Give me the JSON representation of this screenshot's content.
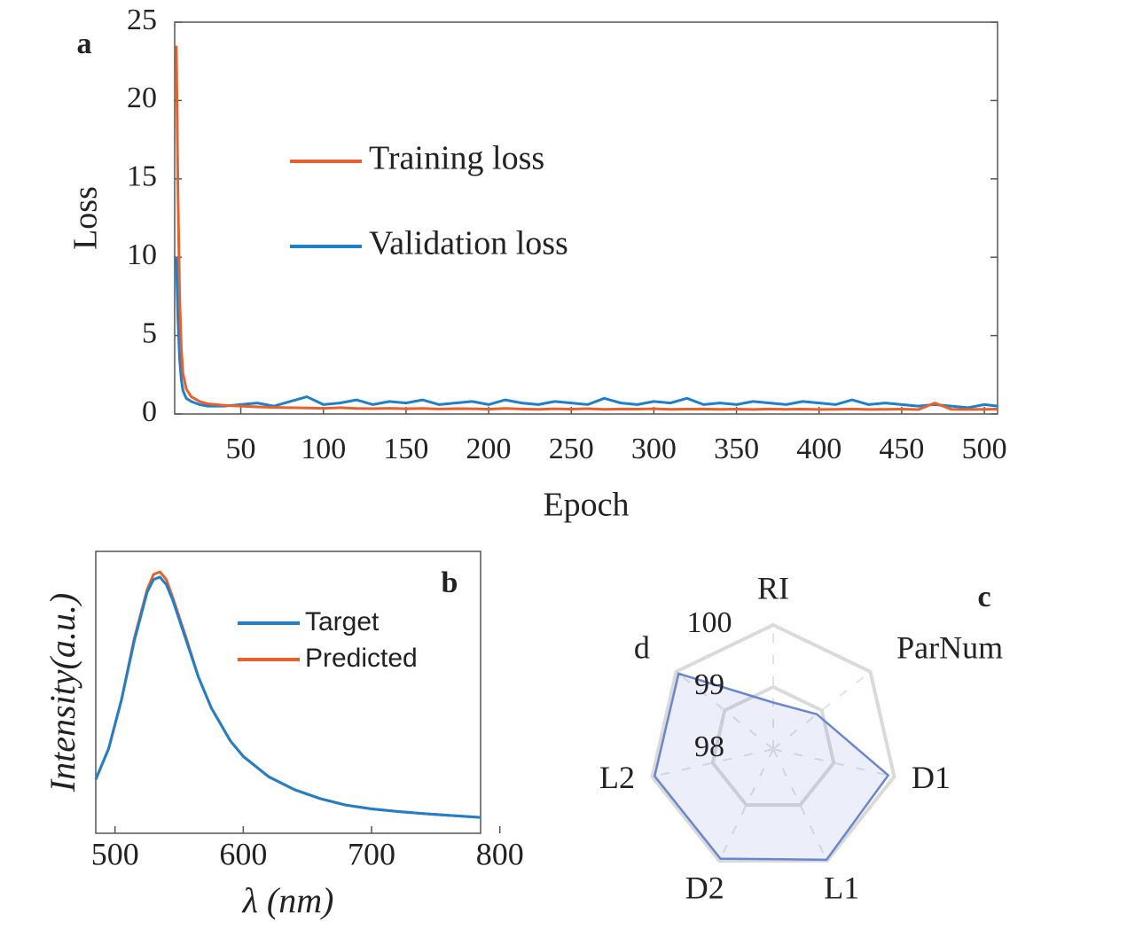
{
  "chart_data": [
    {
      "type": "line",
      "panel": "a",
      "xlabel": "Epoch",
      "ylabel": "Loss",
      "x": [
        11,
        12,
        13,
        14,
        15,
        17,
        20,
        25,
        30,
        40,
        50,
        60,
        70,
        80,
        90,
        100,
        110,
        120,
        130,
        140,
        150,
        160,
        170,
        180,
        190,
        200,
        210,
        220,
        230,
        240,
        250,
        260,
        270,
        280,
        290,
        300,
        310,
        320,
        330,
        340,
        350,
        360,
        370,
        380,
        390,
        400,
        410,
        420,
        430,
        440,
        450,
        460,
        470,
        480,
        490,
        500,
        508
      ],
      "series": [
        {
          "name": "Training loss",
          "color": "#e8602c",
          "values": [
            23.5,
            14,
            7.5,
            4.2,
            2.6,
            1.6,
            1.1,
            0.8,
            0.65,
            0.55,
            0.5,
            0.45,
            0.42,
            0.4,
            0.38,
            0.36,
            0.4,
            0.35,
            0.34,
            0.36,
            0.33,
            0.35,
            0.32,
            0.34,
            0.33,
            0.31,
            0.35,
            0.32,
            0.3,
            0.33,
            0.31,
            0.34,
            0.3,
            0.32,
            0.31,
            0.33,
            0.3,
            0.31,
            0.32,
            0.3,
            0.31,
            0.29,
            0.32,
            0.3,
            0.31,
            0.29,
            0.3,
            0.32,
            0.29,
            0.3,
            0.31,
            0.28,
            0.7,
            0.3,
            0.29,
            0.3,
            0.31
          ]
        },
        {
          "name": "Validation loss",
          "color": "#1f7fc8",
          "values": [
            10,
            6,
            3.5,
            2.2,
            1.5,
            1.0,
            0.8,
            0.6,
            0.5,
            0.5,
            0.6,
            0.7,
            0.5,
            0.8,
            1.1,
            0.6,
            0.7,
            0.9,
            0.6,
            0.8,
            0.7,
            0.9,
            0.6,
            0.7,
            0.8,
            0.6,
            0.9,
            0.7,
            0.6,
            0.8,
            0.7,
            0.6,
            1.0,
            0.7,
            0.6,
            0.8,
            0.7,
            1.0,
            0.6,
            0.7,
            0.6,
            0.8,
            0.7,
            0.6,
            0.8,
            0.7,
            0.6,
            0.9,
            0.6,
            0.7,
            0.6,
            0.5,
            0.6,
            0.5,
            0.4,
            0.6,
            0.5
          ]
        }
      ],
      "xlim": [
        10,
        508
      ],
      "ylim": [
        0,
        25
      ],
      "xticks": [
        50,
        100,
        150,
        200,
        250,
        300,
        350,
        400,
        450,
        500
      ],
      "yticks": [
        0,
        5,
        10,
        15,
        20,
        25
      ]
    },
    {
      "type": "line",
      "panel": "b",
      "xlabel": "λ (nm)",
      "ylabel": "Intensity(a.u.)",
      "x": [
        485,
        495,
        505,
        515,
        525,
        530,
        535,
        540,
        545,
        555,
        565,
        575,
        590,
        600,
        620,
        640,
        660,
        680,
        700,
        720,
        740,
        760,
        785
      ],
      "series": [
        {
          "name": "Target",
          "color": "#1f7fc8",
          "values": [
            0.21,
            0.33,
            0.52,
            0.75,
            0.94,
            0.99,
            1.0,
            0.97,
            0.91,
            0.76,
            0.61,
            0.49,
            0.36,
            0.3,
            0.22,
            0.17,
            0.135,
            0.11,
            0.095,
            0.085,
            0.077,
            0.07,
            0.062
          ]
        },
        {
          "name": "Predicted",
          "color": "#e8602c",
          "values": [
            0.21,
            0.33,
            0.52,
            0.76,
            0.95,
            1.01,
            1.02,
            0.99,
            0.92,
            0.77,
            0.61,
            0.49,
            0.36,
            0.3,
            0.22,
            0.17,
            0.135,
            0.11,
            0.095,
            0.085,
            0.077,
            0.07,
            0.062
          ]
        }
      ],
      "xlim": [
        485,
        785
      ],
      "ylim": [
        0,
        1.1
      ],
      "xticks": [
        500,
        600,
        700,
        800
      ]
    },
    {
      "type": "radar",
      "panel": "c",
      "categories": [
        "RI",
        "ParNum",
        "D1",
        "L1",
        "D2",
        "L2",
        "d"
      ],
      "series": [
        {
          "color": "#6a86d0",
          "values": [
            98.75,
            98.9,
            99.9,
            99.98,
            99.96,
            99.96,
            99.95
          ]
        }
      ],
      "rlim": [
        98,
        100
      ],
      "rticks": [
        98,
        99,
        100
      ]
    }
  ]
}
